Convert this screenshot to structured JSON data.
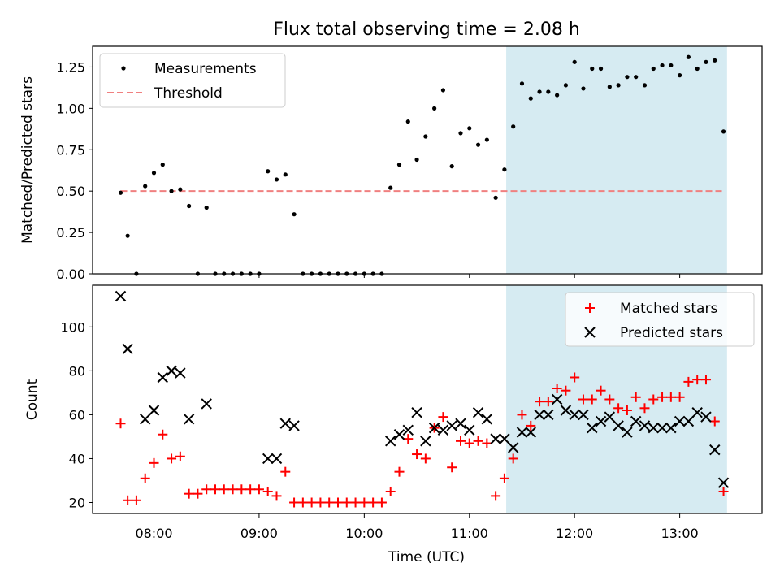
{
  "chart_data": [
    {
      "type": "scatter",
      "title": "Flux total observing time = 2.08 h",
      "xlabel": "",
      "ylabel": "Matched/Predicted stars",
      "ylim": [
        0.0,
        1.375
      ],
      "yticks": [
        "0.00",
        "0.25",
        "0.50",
        "0.75",
        "1.00",
        "1.25"
      ],
      "xlim": [
        "07:25",
        "13:47"
      ],
      "shaded_region": [
        "11:21",
        "13:27"
      ],
      "shade_color": "#add8e6",
      "grid": false,
      "legend_position": "upper left",
      "series": [
        {
          "name": "Measurements",
          "color": "#000000",
          "marker": "dot",
          "points": [
            [
              "07:41",
              0.49
            ],
            [
              "07:45",
              0.23
            ],
            [
              "07:50",
              0.0
            ],
            [
              "07:55",
              0.53
            ],
            [
              "08:00",
              0.61
            ],
            [
              "08:05",
              0.66
            ],
            [
              "08:10",
              0.5
            ],
            [
              "08:15",
              0.51
            ],
            [
              "08:20",
              0.41
            ],
            [
              "08:25",
              0.0
            ],
            [
              "08:30",
              0.4
            ],
            [
              "08:35",
              0.0
            ],
            [
              "08:40",
              0.0
            ],
            [
              "08:45",
              0.0
            ],
            [
              "08:50",
              0.0
            ],
            [
              "08:55",
              0.0
            ],
            [
              "09:00",
              0.0
            ],
            [
              "09:05",
              0.62
            ],
            [
              "09:10",
              0.57
            ],
            [
              "09:15",
              0.6
            ],
            [
              "09:20",
              0.36
            ],
            [
              "09:25",
              0.0
            ],
            [
              "09:30",
              0.0
            ],
            [
              "09:35",
              0.0
            ],
            [
              "09:40",
              0.0
            ],
            [
              "09:45",
              0.0
            ],
            [
              "09:50",
              0.0
            ],
            [
              "09:55",
              0.0
            ],
            [
              "10:00",
              0.0
            ],
            [
              "10:05",
              0.0
            ],
            [
              "10:10",
              0.0
            ],
            [
              "10:15",
              0.52
            ],
            [
              "10:20",
              0.66
            ],
            [
              "10:25",
              0.92
            ],
            [
              "10:30",
              0.69
            ],
            [
              "10:35",
              0.83
            ],
            [
              "10:40",
              1.0
            ],
            [
              "10:45",
              1.11
            ],
            [
              "10:50",
              0.65
            ],
            [
              "10:55",
              0.85
            ],
            [
              "11:00",
              0.88
            ],
            [
              "11:05",
              0.78
            ],
            [
              "11:10",
              0.81
            ],
            [
              "11:15",
              0.46
            ],
            [
              "11:20",
              0.63
            ],
            [
              "11:25",
              0.89
            ],
            [
              "11:30",
              1.15
            ],
            [
              "11:35",
              1.06
            ],
            [
              "11:40",
              1.1
            ],
            [
              "11:45",
              1.1
            ],
            [
              "11:50",
              1.08
            ],
            [
              "11:55",
              1.14
            ],
            [
              "12:00",
              1.28
            ],
            [
              "12:05",
              1.12
            ],
            [
              "12:10",
              1.24
            ],
            [
              "12:15",
              1.24
            ],
            [
              "12:20",
              1.13
            ],
            [
              "12:25",
              1.14
            ],
            [
              "12:30",
              1.19
            ],
            [
              "12:35",
              1.19
            ],
            [
              "12:40",
              1.14
            ],
            [
              "12:45",
              1.24
            ],
            [
              "12:50",
              1.26
            ],
            [
              "12:55",
              1.26
            ],
            [
              "13:00",
              1.2
            ],
            [
              "13:05",
              1.31
            ],
            [
              "13:10",
              1.24
            ],
            [
              "13:15",
              1.28
            ],
            [
              "13:20",
              1.29
            ],
            [
              "13:25",
              0.86
            ]
          ]
        },
        {
          "name": "Threshold",
          "color": "#f08080",
          "style": "dashed",
          "points": [
            [
              "07:41",
              0.5
            ],
            [
              "13:25",
              0.5
            ]
          ]
        }
      ]
    },
    {
      "type": "scatter",
      "title": "",
      "xlabel": "Time (UTC)",
      "ylabel": "Count",
      "ylim": [
        15,
        119
      ],
      "yticks": [
        "20",
        "40",
        "60",
        "80",
        "100"
      ],
      "xlim": [
        "07:25",
        "13:47"
      ],
      "xticks": [
        "08:00",
        "09:00",
        "10:00",
        "11:00",
        "12:00",
        "13:00"
      ],
      "shaded_region": [
        "11:21",
        "13:27"
      ],
      "shade_color": "#add8e6",
      "grid": false,
      "legend_position": "upper right",
      "series": [
        {
          "name": "Matched stars",
          "color": "#ff0000",
          "marker": "plus",
          "points": [
            [
              "07:41",
              56
            ],
            [
              "07:45",
              21
            ],
            [
              "07:50",
              21
            ],
            [
              "07:55",
              31
            ],
            [
              "08:00",
              38
            ],
            [
              "08:05",
              51
            ],
            [
              "08:10",
              40
            ],
            [
              "08:15",
              41
            ],
            [
              "08:20",
              24
            ],
            [
              "08:25",
              24
            ],
            [
              "08:30",
              26
            ],
            [
              "08:35",
              26
            ],
            [
              "08:40",
              26
            ],
            [
              "08:45",
              26
            ],
            [
              "08:50",
              26
            ],
            [
              "08:55",
              26
            ],
            [
              "09:00",
              26
            ],
            [
              "09:05",
              25
            ],
            [
              "09:10",
              23
            ],
            [
              "09:15",
              34
            ],
            [
              "09:20",
              20
            ],
            [
              "09:25",
              20
            ],
            [
              "09:30",
              20
            ],
            [
              "09:35",
              20
            ],
            [
              "09:40",
              20
            ],
            [
              "09:45",
              20
            ],
            [
              "09:50",
              20
            ],
            [
              "09:55",
              20
            ],
            [
              "10:00",
              20
            ],
            [
              "10:05",
              20
            ],
            [
              "10:10",
              20
            ],
            [
              "10:15",
              25
            ],
            [
              "10:20",
              34
            ],
            [
              "10:25",
              49
            ],
            [
              "10:30",
              42
            ],
            [
              "10:35",
              40
            ],
            [
              "10:40",
              54
            ],
            [
              "10:45",
              59
            ],
            [
              "10:50",
              36
            ],
            [
              "10:55",
              48
            ],
            [
              "11:00",
              47
            ],
            [
              "11:05",
              48
            ],
            [
              "11:10",
              47
            ],
            [
              "11:15",
              23
            ],
            [
              "11:20",
              31
            ],
            [
              "11:25",
              40
            ],
            [
              "11:30",
              60
            ],
            [
              "11:35",
              55
            ],
            [
              "11:40",
              66
            ],
            [
              "11:45",
              66
            ],
            [
              "11:50",
              72
            ],
            [
              "11:55",
              71
            ],
            [
              "12:00",
              77
            ],
            [
              "12:05",
              67
            ],
            [
              "12:10",
              67
            ],
            [
              "12:15",
              71
            ],
            [
              "12:20",
              67
            ],
            [
              "12:25",
              63
            ],
            [
              "12:30",
              62
            ],
            [
              "12:35",
              68
            ],
            [
              "12:40",
              63
            ],
            [
              "12:45",
              67
            ],
            [
              "12:50",
              68
            ],
            [
              "12:55",
              68
            ],
            [
              "13:00",
              68
            ],
            [
              "13:05",
              75
            ],
            [
              "13:10",
              76
            ],
            [
              "13:15",
              76
            ],
            [
              "13:20",
              57
            ],
            [
              "13:25",
              25
            ]
          ]
        },
        {
          "name": "Predicted stars",
          "color": "#000000",
          "marker": "x",
          "points": [
            [
              "07:41",
              114
            ],
            [
              "07:45",
              90
            ],
            [
              "07:55",
              58
            ],
            [
              "08:00",
              62
            ],
            [
              "08:05",
              77
            ],
            [
              "08:10",
              80
            ],
            [
              "08:15",
              79
            ],
            [
              "08:20",
              58
            ],
            [
              "08:30",
              65
            ],
            [
              "09:05",
              40
            ],
            [
              "09:10",
              40
            ],
            [
              "09:15",
              56
            ],
            [
              "09:20",
              55
            ],
            [
              "10:15",
              48
            ],
            [
              "10:20",
              51
            ],
            [
              "10:25",
              53
            ],
            [
              "10:30",
              61
            ],
            [
              "10:35",
              48
            ],
            [
              "10:40",
              54
            ],
            [
              "10:45",
              53
            ],
            [
              "10:50",
              55
            ],
            [
              "10:55",
              56
            ],
            [
              "11:00",
              53
            ],
            [
              "11:05",
              61
            ],
            [
              "11:10",
              58
            ],
            [
              "11:15",
              49
            ],
            [
              "11:20",
              49
            ],
            [
              "11:25",
              45
            ],
            [
              "11:30",
              52
            ],
            [
              "11:35",
              52
            ],
            [
              "11:40",
              60
            ],
            [
              "11:45",
              60
            ],
            [
              "11:50",
              67
            ],
            [
              "11:55",
              62
            ],
            [
              "12:00",
              60
            ],
            [
              "12:05",
              60
            ],
            [
              "12:10",
              54
            ],
            [
              "12:15",
              57
            ],
            [
              "12:20",
              59
            ],
            [
              "12:25",
              55
            ],
            [
              "12:30",
              52
            ],
            [
              "12:35",
              57
            ],
            [
              "12:40",
              55
            ],
            [
              "12:45",
              54
            ],
            [
              "12:50",
              54
            ],
            [
              "12:55",
              54
            ],
            [
              "13:00",
              57
            ],
            [
              "13:05",
              57
            ],
            [
              "13:10",
              61
            ],
            [
              "13:15",
              59
            ],
            [
              "13:20",
              44
            ],
            [
              "13:25",
              29
            ]
          ]
        }
      ]
    }
  ]
}
